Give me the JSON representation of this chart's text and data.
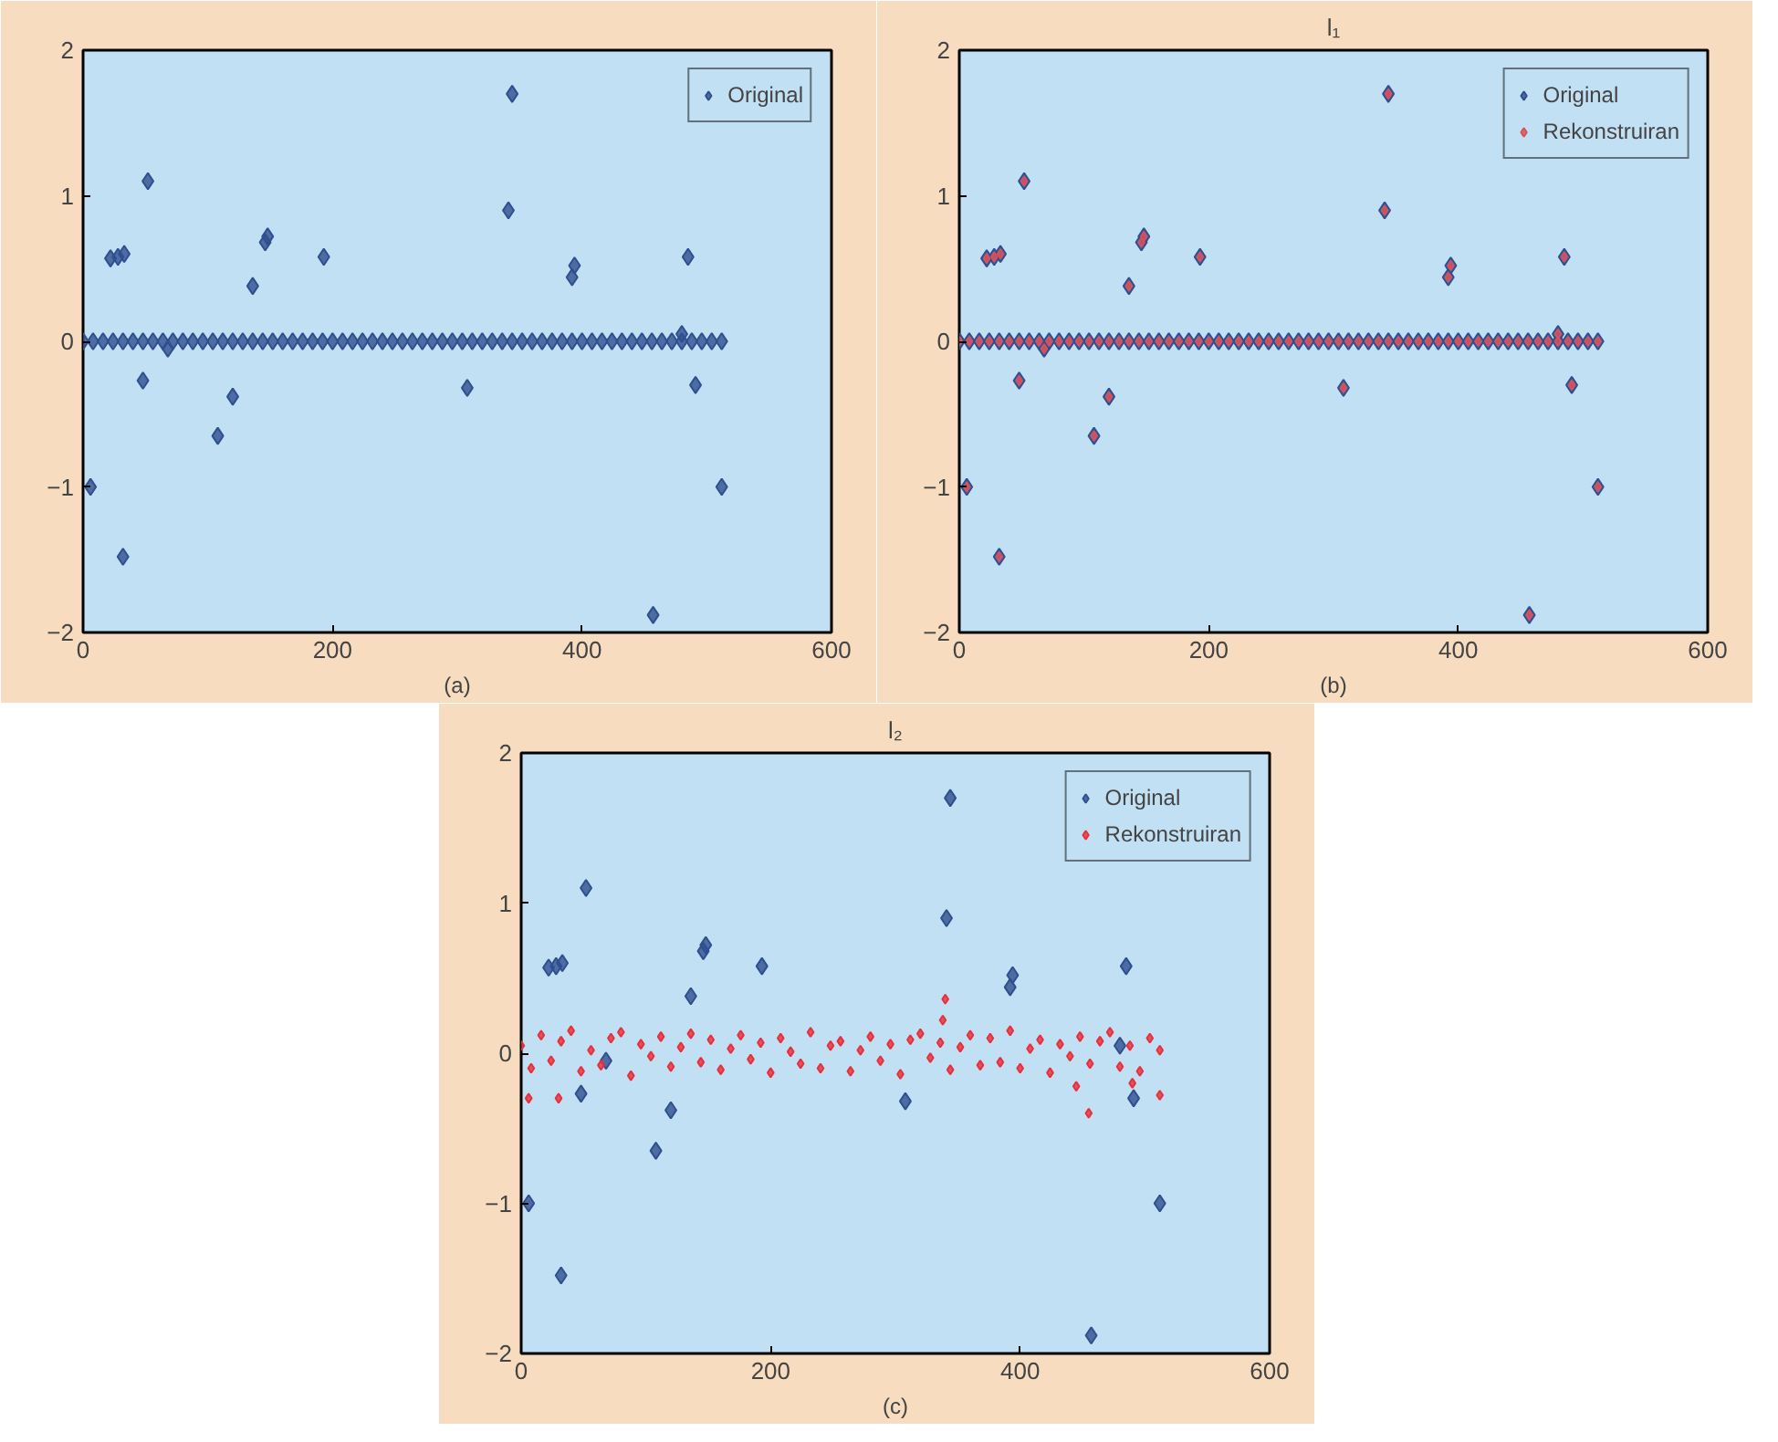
{
  "chart_data": [
    {
      "type": "scatter",
      "xlabel": "(a)",
      "xlim": [
        0,
        600
      ],
      "ylim": [
        -2,
        2
      ],
      "xticks": [
        0,
        200,
        400,
        600
      ],
      "yticks": [
        -2,
        -1,
        0,
        1,
        2
      ],
      "legend": "top right",
      "marker": "diamond",
      "grid": false,
      "series": [
        {
          "name": "Original",
          "color": "#2f4f8f",
          "x": [
            0,
            8,
            16,
            24,
            32,
            40,
            48,
            56,
            64,
            72,
            80,
            88,
            96,
            104,
            112,
            120,
            128,
            136,
            144,
            152,
            160,
            168,
            176,
            184,
            192,
            200,
            208,
            216,
            224,
            232,
            240,
            248,
            256,
            264,
            272,
            280,
            288,
            296,
            304,
            312,
            320,
            328,
            336,
            344,
            352,
            360,
            368,
            376,
            384,
            392,
            400,
            408,
            416,
            424,
            432,
            440,
            448,
            456,
            464,
            472,
            480,
            488,
            496,
            504,
            512,
            6,
            22,
            28,
            33,
            32,
            48,
            52,
            68,
            108,
            120,
            136,
            146,
            148,
            193,
            308,
            341,
            344,
            392,
            394,
            457,
            480,
            485,
            491,
            512
          ],
          "values": [
            0,
            0,
            0,
            0,
            0,
            0,
            0,
            0,
            0,
            0,
            0,
            0,
            0,
            0,
            0,
            0,
            0,
            0,
            0,
            0,
            0,
            0,
            0,
            0,
            0,
            0,
            0,
            0,
            0,
            0,
            0,
            0,
            0,
            0,
            0,
            0,
            0,
            0,
            0,
            0,
            0,
            0,
            0,
            0,
            0,
            0,
            0,
            0,
            0,
            0,
            0,
            0,
            0,
            0,
            0,
            0,
            0,
            0,
            0,
            0,
            0,
            0,
            0,
            0,
            0,
            -1.0,
            0.57,
            0.58,
            0.6,
            -1.48,
            -0.27,
            1.1,
            -0.05,
            -0.65,
            -0.38,
            0.38,
            0.68,
            0.72,
            0.58,
            -0.32,
            0.9,
            1.7,
            0.44,
            0.52,
            -1.88,
            0.05,
            0.58,
            -0.3,
            -1.0
          ]
        }
      ]
    },
    {
      "type": "scatter",
      "title": "l₁",
      "xlabel": "(b)",
      "xlim": [
        0,
        600
      ],
      "ylim": [
        -2,
        2
      ],
      "xticks": [
        0,
        200,
        400,
        600
      ],
      "yticks": [
        -2,
        -1,
        0,
        1,
        2
      ],
      "legend": "top right",
      "marker": "diamond",
      "grid": false,
      "series": [
        {
          "name": "Original",
          "color": "#2f4f8f",
          "x": [
            0,
            8,
            16,
            24,
            32,
            40,
            48,
            56,
            64,
            72,
            80,
            88,
            96,
            104,
            112,
            120,
            128,
            136,
            144,
            152,
            160,
            168,
            176,
            184,
            192,
            200,
            208,
            216,
            224,
            232,
            240,
            248,
            256,
            264,
            272,
            280,
            288,
            296,
            304,
            312,
            320,
            328,
            336,
            344,
            352,
            360,
            368,
            376,
            384,
            392,
            400,
            408,
            416,
            424,
            432,
            440,
            448,
            456,
            464,
            472,
            480,
            488,
            496,
            504,
            512,
            6,
            22,
            28,
            33,
            32,
            48,
            52,
            68,
            108,
            120,
            136,
            146,
            148,
            193,
            308,
            341,
            344,
            392,
            394,
            457,
            480,
            485,
            491,
            512
          ],
          "values": [
            0,
            0,
            0,
            0,
            0,
            0,
            0,
            0,
            0,
            0,
            0,
            0,
            0,
            0,
            0,
            0,
            0,
            0,
            0,
            0,
            0,
            0,
            0,
            0,
            0,
            0,
            0,
            0,
            0,
            0,
            0,
            0,
            0,
            0,
            0,
            0,
            0,
            0,
            0,
            0,
            0,
            0,
            0,
            0,
            0,
            0,
            0,
            0,
            0,
            0,
            0,
            0,
            0,
            0,
            0,
            0,
            0,
            0,
            0,
            0,
            0,
            0,
            0,
            0,
            0,
            -1.0,
            0.57,
            0.58,
            0.6,
            -1.48,
            -0.27,
            1.1,
            -0.05,
            -0.65,
            -0.38,
            0.38,
            0.68,
            0.72,
            0.58,
            -0.32,
            0.9,
            1.7,
            0.44,
            0.52,
            -1.88,
            0.05,
            0.58,
            -0.3,
            -1.0
          ]
        },
        {
          "name": "Rekonstruiran",
          "color": "#d9505a",
          "x": [
            0,
            8,
            16,
            24,
            32,
            40,
            48,
            56,
            64,
            72,
            80,
            88,
            96,
            104,
            112,
            120,
            128,
            136,
            144,
            152,
            160,
            168,
            176,
            184,
            192,
            200,
            208,
            216,
            224,
            232,
            240,
            248,
            256,
            264,
            272,
            280,
            288,
            296,
            304,
            312,
            320,
            328,
            336,
            344,
            352,
            360,
            368,
            376,
            384,
            392,
            400,
            408,
            416,
            424,
            432,
            440,
            448,
            456,
            464,
            472,
            480,
            488,
            496,
            504,
            512,
            6,
            22,
            28,
            33,
            32,
            48,
            52,
            68,
            108,
            120,
            136,
            146,
            148,
            193,
            308,
            341,
            344,
            392,
            394,
            457,
            480,
            485,
            491,
            512
          ],
          "values": [
            0,
            0,
            0,
            0,
            0,
            0,
            0,
            0,
            0,
            0,
            0,
            0,
            0,
            0,
            0,
            0,
            0,
            0,
            0,
            0,
            0,
            0,
            0,
            0,
            0,
            0,
            0,
            0,
            0,
            0,
            0,
            0,
            0,
            0,
            0,
            0,
            0,
            0,
            0,
            0,
            0,
            0,
            0,
            0,
            0,
            0,
            0,
            0,
            0,
            0,
            0,
            0,
            0,
            0,
            0,
            0,
            0,
            0,
            0,
            0,
            0,
            0,
            0,
            0,
            0,
            -1.0,
            0.57,
            0.58,
            0.6,
            -1.48,
            -0.27,
            1.1,
            -0.05,
            -0.65,
            -0.38,
            0.38,
            0.68,
            0.72,
            0.58,
            -0.32,
            0.9,
            1.7,
            0.44,
            0.52,
            -1.88,
            0.05,
            0.58,
            -0.3,
            -1.0
          ]
        }
      ]
    },
    {
      "type": "scatter",
      "title": "l₂",
      "xlabel": "(c)",
      "xlim": [
        0,
        600
      ],
      "ylim": [
        -2,
        2
      ],
      "xticks": [
        0,
        200,
        400,
        600
      ],
      "yticks": [
        -2,
        -1,
        0,
        1,
        2
      ],
      "legend": "top right",
      "marker": "diamond",
      "grid": false,
      "series": [
        {
          "name": "Original",
          "color": "#2f4f8f",
          "x": [
            6,
            22,
            28,
            33,
            32,
            48,
            52,
            68,
            108,
            120,
            136,
            146,
            148,
            193,
            308,
            341,
            344,
            392,
            394,
            457,
            480,
            485,
            491,
            512
          ],
          "values": [
            -1.0,
            0.57,
            0.58,
            0.6,
            -1.48,
            -0.27,
            1.1,
            -0.05,
            -0.65,
            -0.38,
            0.38,
            0.68,
            0.72,
            0.58,
            -0.32,
            0.9,
            1.7,
            0.44,
            0.52,
            -1.88,
            0.05,
            0.58,
            -0.3,
            -1.0
          ]
        },
        {
          "name": "Rekonstruiran",
          "color": "#e8303c",
          "x": [
            0,
            8,
            16,
            24,
            32,
            40,
            48,
            56,
            64,
            72,
            80,
            88,
            96,
            104,
            112,
            120,
            128,
            136,
            144,
            152,
            160,
            168,
            176,
            184,
            192,
            200,
            208,
            216,
            224,
            232,
            240,
            248,
            256,
            264,
            272,
            280,
            288,
            296,
            304,
            312,
            320,
            328,
            336,
            344,
            352,
            360,
            368,
            376,
            384,
            392,
            400,
            408,
            416,
            424,
            432,
            440,
            448,
            456,
            464,
            472,
            480,
            488,
            496,
            504,
            512,
            6,
            30,
            338,
            340,
            445,
            455,
            490,
            512
          ],
          "values": [
            0.05,
            -0.1,
            0.12,
            -0.05,
            0.08,
            0.15,
            -0.12,
            0.02,
            -0.08,
            0.1,
            0.14,
            -0.15,
            0.06,
            -0.02,
            0.11,
            -0.09,
            0.04,
            0.13,
            -0.06,
            0.09,
            -0.11,
            0.03,
            0.12,
            -0.04,
            0.07,
            -0.13,
            0.1,
            0.01,
            -0.07,
            0.14,
            -0.1,
            0.05,
            0.08,
            -0.12,
            0.02,
            0.11,
            -0.05,
            0.06,
            -0.14,
            0.09,
            0.13,
            -0.03,
            0.07,
            -0.11,
            0.04,
            0.12,
            -0.08,
            0.1,
            -0.06,
            0.15,
            -0.1,
            0.03,
            0.09,
            -0.13,
            0.06,
            -0.02,
            0.11,
            -0.07,
            0.08,
            0.14,
            -0.09,
            0.05,
            -0.12,
            0.1,
            0.02,
            -0.3,
            -0.3,
            0.22,
            0.36,
            -0.22,
            -0.4,
            -0.2,
            -0.28
          ]
        }
      ]
    }
  ]
}
